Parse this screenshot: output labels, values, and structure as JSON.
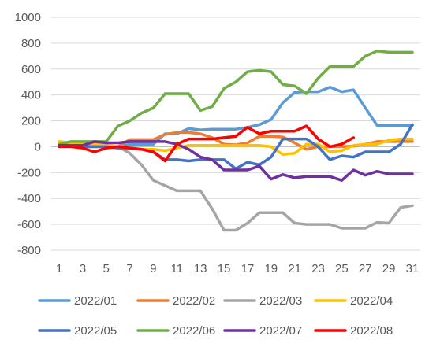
{
  "chart_data": {
    "type": "line",
    "title": "",
    "xlabel": "",
    "ylabel": "",
    "x": [
      1,
      2,
      3,
      4,
      5,
      6,
      7,
      8,
      9,
      10,
      11,
      12,
      13,
      14,
      15,
      16,
      17,
      18,
      19,
      20,
      21,
      22,
      23,
      24,
      25,
      26,
      27,
      28,
      29,
      30,
      31
    ],
    "x_tick_labels": [
      "1",
      "3",
      "5",
      "7",
      "9",
      "11",
      "13",
      "15",
      "17",
      "19",
      "21",
      "23",
      "25",
      "27",
      "29",
      "31"
    ],
    "xlim": [
      1,
      31
    ],
    "ylim": [
      -800,
      1000
    ],
    "y_ticks": [
      -800,
      -600,
      -400,
      -200,
      0,
      200,
      400,
      600,
      800,
      1000
    ],
    "grid": "horizontal",
    "legend_position": "bottom",
    "series": [
      {
        "name": "2022/01",
        "color": "#5B9BD5",
        "values": [
          20,
          10,
          0,
          0,
          0,
          0,
          20,
          20,
          20,
          100,
          100,
          140,
          130,
          135,
          135,
          135,
          150,
          170,
          210,
          340,
          420,
          425,
          425,
          460,
          425,
          440,
          300,
          165,
          165,
          165,
          165
        ]
      },
      {
        "name": "2022/02",
        "color": "#ED7D31",
        "values": [
          20,
          10,
          0,
          0,
          0,
          0,
          55,
          55,
          55,
          95,
          110,
          110,
          100,
          70,
          20,
          15,
          30,
          80,
          80,
          75,
          30,
          -20,
          0,
          0,
          0,
          5,
          20,
          40,
          40,
          40,
          40
        ]
      },
      {
        "name": "2022/03",
        "color": "#A5A5A5",
        "values": [
          10,
          10,
          10,
          10,
          10,
          0,
          -50,
          -140,
          -260,
          -300,
          -340,
          -340,
          -340,
          -480,
          -645,
          -645,
          -590,
          -510,
          -510,
          -510,
          -590,
          -600,
          -600,
          -600,
          -630,
          -630,
          -630,
          -585,
          -590,
          -470,
          -455
        ]
      },
      {
        "name": "2022/04",
        "color": "#FFC000",
        "values": [
          40,
          30,
          30,
          20,
          10,
          0,
          -10,
          -20,
          -20,
          -30,
          -10,
          10,
          10,
          10,
          10,
          10,
          10,
          10,
          0,
          -60,
          -50,
          20,
          20,
          -40,
          -30,
          10,
          20,
          20,
          50,
          60,
          60
        ]
      },
      {
        "name": "2022/05",
        "color": "#4472C4",
        "values": [
          0,
          0,
          0,
          0,
          0,
          -10,
          -10,
          -20,
          -40,
          -100,
          -100,
          -110,
          -100,
          -100,
          -100,
          -170,
          -120,
          -140,
          -80,
          60,
          60,
          60,
          0,
          -100,
          -70,
          -80,
          -40,
          -40,
          -40,
          20,
          170
        ]
      },
      {
        "name": "2022/06",
        "color": "#70AD47",
        "values": [
          20,
          40,
          40,
          40,
          40,
          160,
          200,
          260,
          300,
          410,
          410,
          410,
          280,
          310,
          450,
          500,
          580,
          590,
          580,
          480,
          470,
          410,
          530,
          620,
          620,
          620,
          700,
          740,
          730,
          730,
          730
        ]
      },
      {
        "name": "2022/07",
        "color": "#7030A0",
        "values": [
          10,
          10,
          10,
          40,
          30,
          30,
          40,
          40,
          40,
          40,
          20,
          -20,
          -80,
          -100,
          -180,
          -180,
          -180,
          -150,
          -250,
          -215,
          -240,
          -230,
          -230,
          -230,
          -260,
          -180,
          -220,
          -190,
          -210,
          -210,
          -210
        ]
      },
      {
        "name": "2022/08",
        "color": "#FF0000",
        "values": [
          0,
          0,
          -10,
          -40,
          -10,
          0,
          -10,
          -20,
          -40,
          -110,
          20,
          60,
          60,
          60,
          70,
          80,
          150,
          100,
          120,
          120,
          120,
          160,
          60,
          0,
          20,
          70,
          null,
          null,
          null,
          null,
          null
        ]
      }
    ]
  }
}
